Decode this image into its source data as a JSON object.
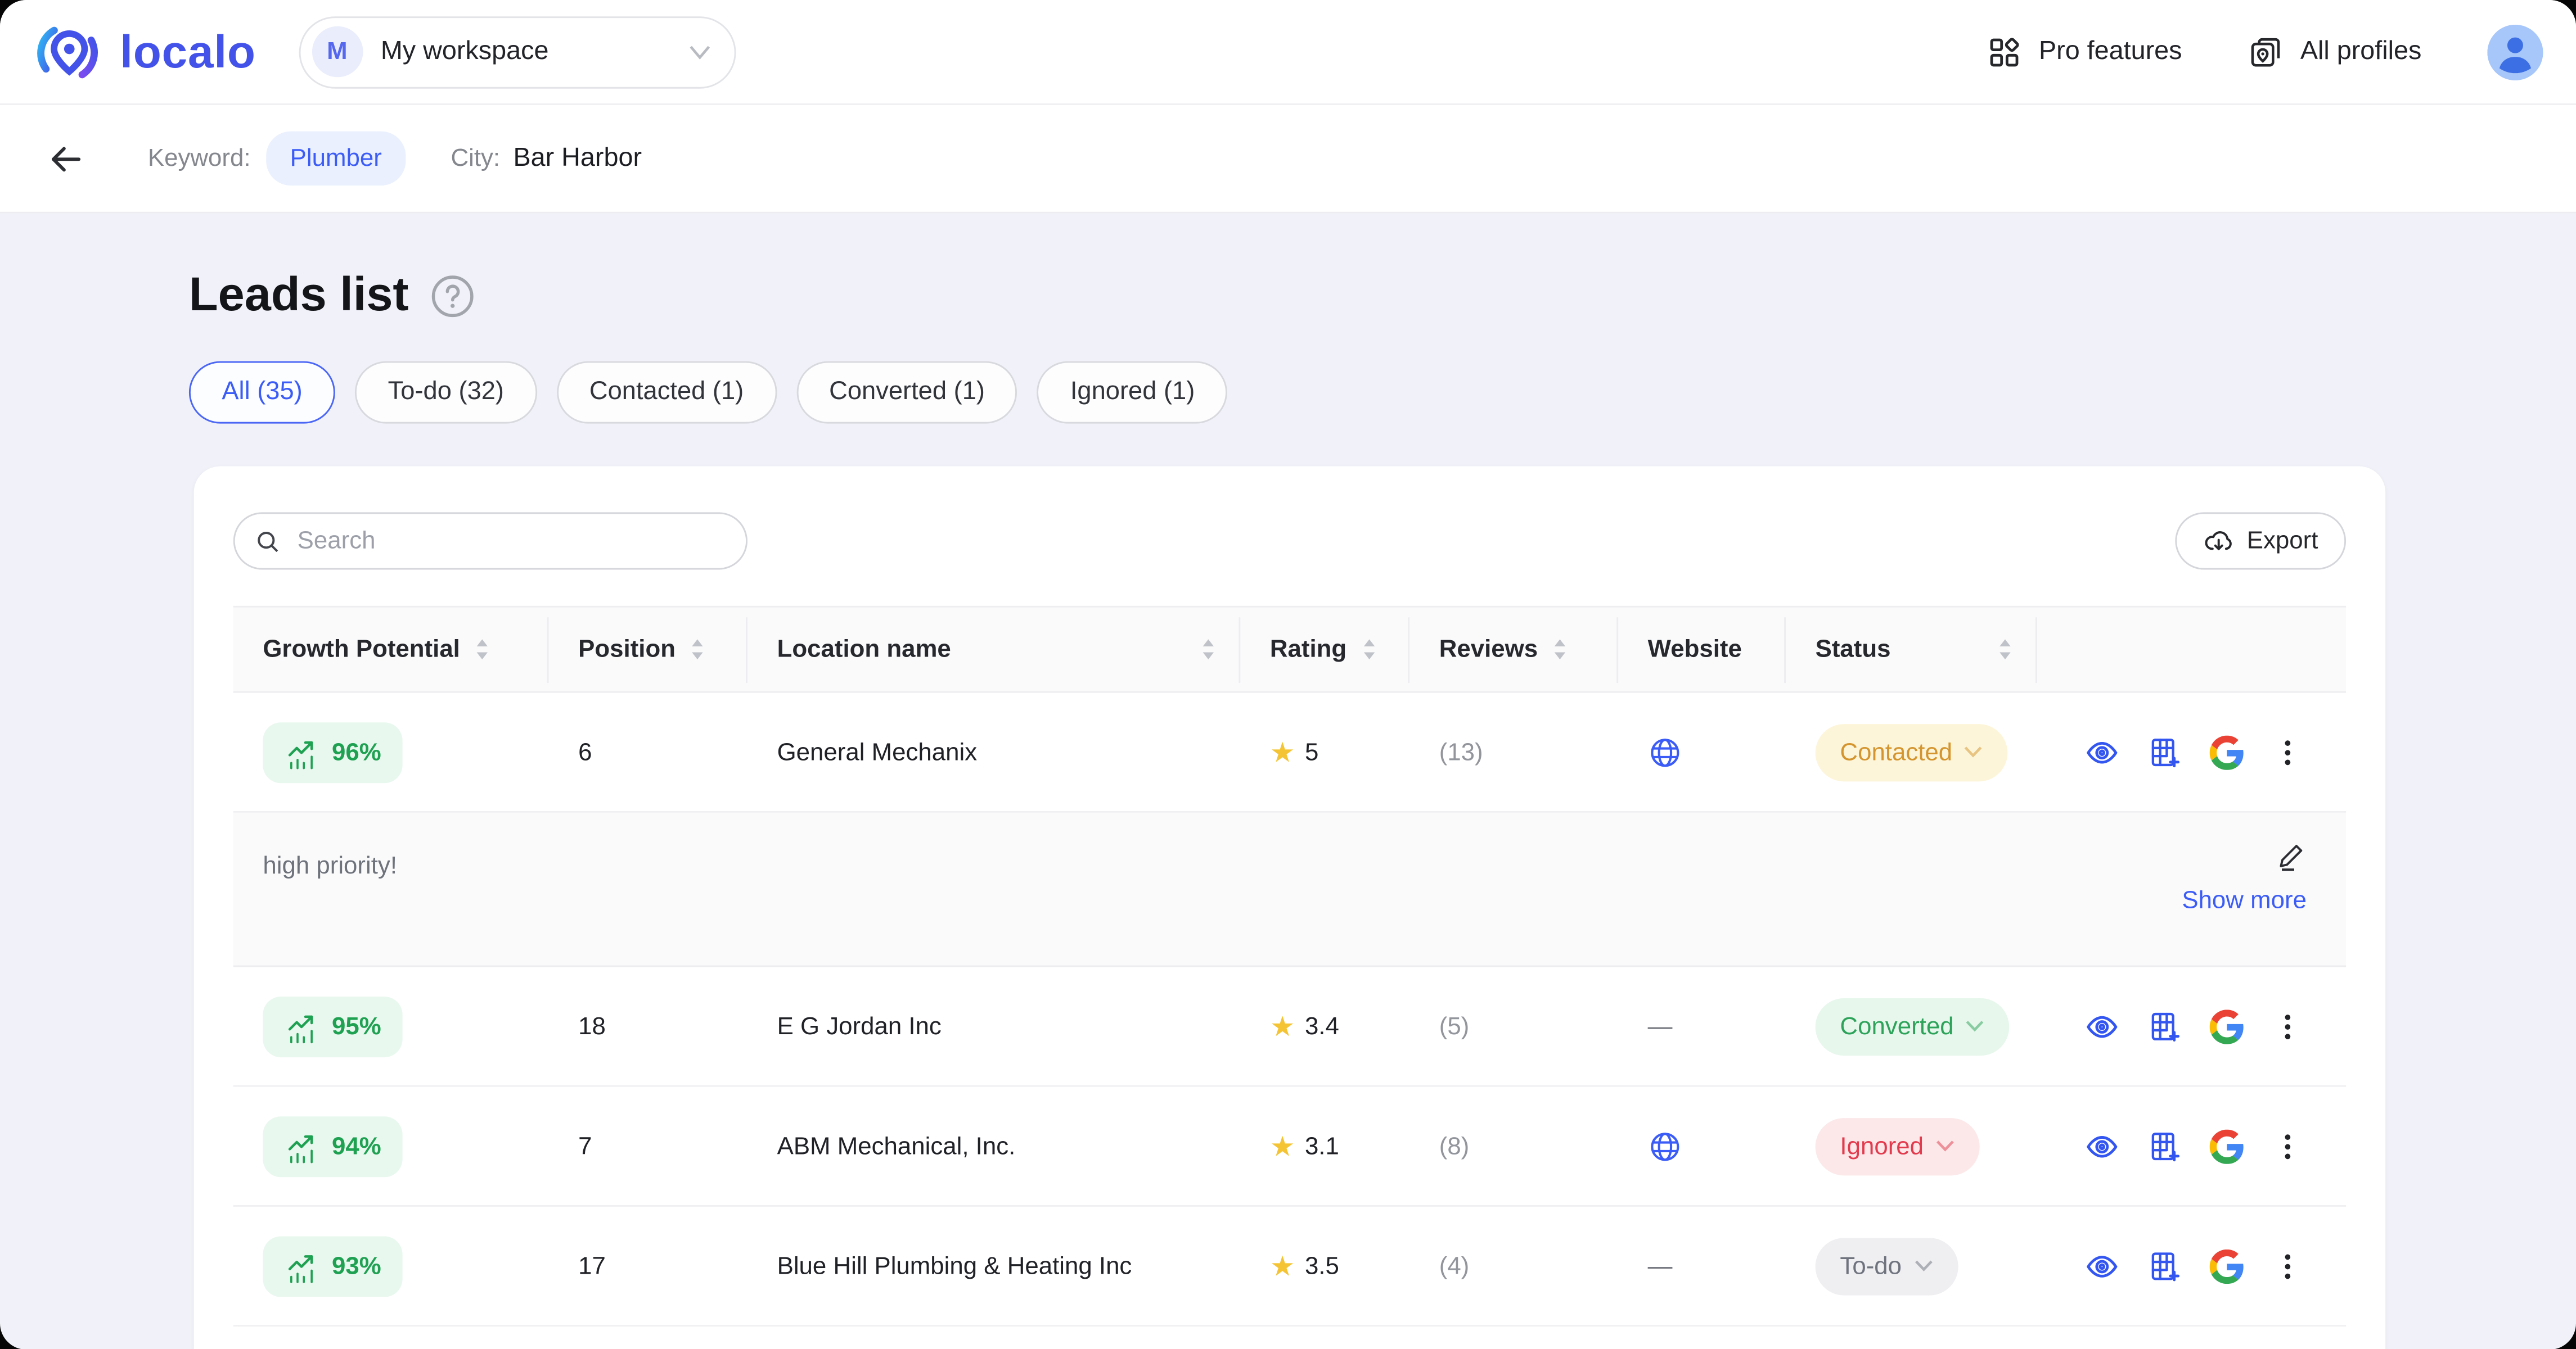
{
  "topbar": {
    "brand": "localo",
    "workspace_initial": "M",
    "workspace_name": "My workspace",
    "pro_features": "Pro features",
    "all_profiles": "All profiles"
  },
  "contextbar": {
    "keyword_label": "Keyword:",
    "keyword_value": "Plumber",
    "city_label": "City:",
    "city_value": "Bar Harbor"
  },
  "page": {
    "title": "Leads list"
  },
  "filters": [
    {
      "label": "All (35)",
      "active": true
    },
    {
      "label": "To-do (32)",
      "active": false
    },
    {
      "label": "Contacted (1)",
      "active": false
    },
    {
      "label": "Converted (1)",
      "active": false
    },
    {
      "label": "Ignored (1)",
      "active": false
    }
  ],
  "toolbar": {
    "search_placeholder": "Search",
    "export_label": "Export"
  },
  "table": {
    "columns": [
      {
        "label": "Growth Potential",
        "sortable": true,
        "sort_right": false
      },
      {
        "label": "Position",
        "sortable": true,
        "sort_right": false
      },
      {
        "label": "Location name",
        "sortable": true,
        "sort_right": true
      },
      {
        "label": "Rating",
        "sortable": true,
        "sort_right": false
      },
      {
        "label": "Reviews",
        "sortable": true,
        "sort_right": false
      },
      {
        "label": "Website",
        "sortable": false,
        "sort_right": false
      },
      {
        "label": "Status",
        "sortable": true,
        "sort_right": true
      },
      {
        "label": "",
        "sortable": false,
        "sort_right": false
      }
    ],
    "rows": [
      {
        "growth": "96%",
        "position": "6",
        "name": "General Mechanix",
        "rating": "5",
        "reviews": "(13)",
        "website": true,
        "status": {
          "label": "Contacted",
          "key": "contacted"
        },
        "note": {
          "text": "high priority!",
          "show_more": "Show more"
        }
      },
      {
        "growth": "95%",
        "position": "18",
        "name": "E G Jordan Inc",
        "rating": "3.4",
        "reviews": "(5)",
        "website": false,
        "status": {
          "label": "Converted",
          "key": "converted"
        }
      },
      {
        "growth": "94%",
        "position": "7",
        "name": "ABM Mechanical, Inc.",
        "rating": "3.1",
        "reviews": "(8)",
        "website": true,
        "status": {
          "label": "Ignored",
          "key": "ignored"
        }
      },
      {
        "growth": "93%",
        "position": "17",
        "name": "Blue Hill Plumbing & Heating Inc",
        "rating": "3.5",
        "reviews": "(4)",
        "website": false,
        "status": {
          "label": "To-do",
          "key": "todo"
        }
      }
    ]
  },
  "colors": {
    "accent_blue": "#3b5cf6",
    "brand_blue": "#4353e9",
    "growth_green": "#1fa152",
    "growth_bg": "#e9f8ef",
    "status_contacted_bg": "#fdf5da",
    "status_contacted_text": "#d4952f",
    "status_converted_bg": "#e7f7ec",
    "status_converted_text": "#2da35a",
    "status_ignored_bg": "#fce8e9",
    "status_ignored_text": "#e23b4e",
    "status_todo_bg": "#efeff2",
    "status_todo_text": "#6f737e",
    "star_yellow": "#f5c434",
    "page_bg": "#f1f2f9"
  }
}
